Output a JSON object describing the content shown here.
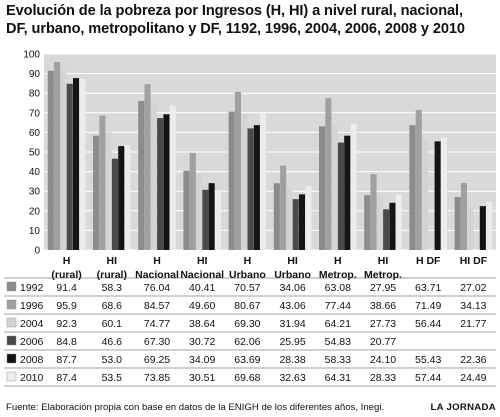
{
  "title": {
    "line1": "Evolución de la pobreza por Ingresos (H, HI) a nivel rural, nacional,",
    "line2": "DF, urbano, metropolitano y DF, 1192, 1996, 2004, 2006, 2008 y 2010"
  },
  "footer": {
    "source": "Fuente: Elaboración propia con base en datos de la ENIGH de los diferentes años, Inegi.",
    "brand": "LA JORNADA"
  },
  "colors": {
    "background": "#ffffff",
    "plot_background": "#d9d9d9",
    "grid": "#ffffff",
    "series": [
      "#8c8c8c",
      "#a0a0a0",
      "#d4d4d4",
      "#4a4a4a",
      "#141414",
      "#ececec"
    ]
  },
  "chart_data": {
    "type": "bar",
    "title": "Evolución de la pobreza por Ingresos (H, HI) a nivel rural, nacional, DF, urbano, metropolitano y DF, 1192, 1996, 2004, 2006, 2008 y 2010",
    "categories": [
      [
        "H",
        "(rural)"
      ],
      [
        "HI",
        "(rural)"
      ],
      [
        "H",
        "Nacional"
      ],
      [
        "HI",
        "Nacional"
      ],
      [
        "H",
        "Urbano"
      ],
      [
        "HI",
        "Urbano"
      ],
      [
        "H",
        "Metrop."
      ],
      [
        "HI",
        "Metrop."
      ],
      [
        "H DF"
      ],
      [
        "HI DF"
      ]
    ],
    "series": [
      {
        "name": "1992",
        "values": [
          "91.4",
          "58.3",
          "76.04",
          "40.41",
          "70.57",
          "34.06",
          "63.08",
          "27.95",
          "63.71",
          "27.02"
        ]
      },
      {
        "name": "1996",
        "values": [
          "95.9",
          "68.6",
          "84.57",
          "49.60",
          "80.67",
          "43.06",
          "77.44",
          "38.66",
          "71.49",
          "34.13"
        ]
      },
      {
        "name": "2004",
        "values": [
          "92.3",
          "60.1",
          "74.77",
          "38.64",
          "69.30",
          "31.94",
          "64.21",
          "27.73",
          "56.44",
          "21.77"
        ]
      },
      {
        "name": "2006",
        "values": [
          "84.8",
          "46.6",
          "67.30",
          "30.72",
          "62.06",
          "25.95",
          "54.83",
          "20.77",
          "",
          ""
        ]
      },
      {
        "name": "2008",
        "values": [
          "87.7",
          "53.0",
          "69.25",
          "34.09",
          "63.69",
          "28.38",
          "58.33",
          "24.10",
          "55.43",
          "22.36"
        ]
      },
      {
        "name": "2010",
        "values": [
          "87.4",
          "53.5",
          "73.85",
          "30.51",
          "69.68",
          "32.63",
          "64.31",
          "28.33",
          "57.44",
          "24.49"
        ]
      }
    ],
    "ylim": [
      0,
      100
    ],
    "yticks": [
      "0",
      "10",
      "20",
      "30",
      "40",
      "50",
      "60",
      "70",
      "80",
      "90",
      "100"
    ],
    "grid": true,
    "legend": "table below chart"
  }
}
